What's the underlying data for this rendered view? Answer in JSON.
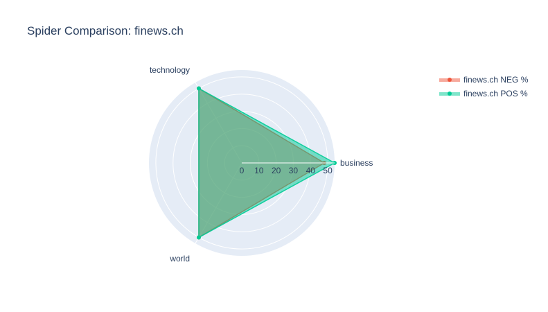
{
  "chart_data": {
    "type": "radar",
    "title": "Spider Comparison: finews.ch",
    "categories": [
      "business",
      "technology",
      "world"
    ],
    "radial_range": [
      0,
      54
    ],
    "radial_ticks": [
      "0",
      "10",
      "20",
      "30",
      "40",
      "50"
    ],
    "radial_tick_values": [
      0,
      10,
      20,
      30,
      40,
      50
    ],
    "series": [
      {
        "name": "finews.ch NEG %",
        "values": [
          48,
          50,
          50
        ],
        "color": "#ef553b"
      },
      {
        "name": "finews.ch POS %",
        "values": [
          54,
          50,
          50
        ],
        "color": "#00cc96"
      }
    ],
    "legend_position": "top-right",
    "grid": true
  },
  "colors": {
    "polar_bg": "#e5ecf6",
    "grid": "#ffffff",
    "text": "#2a3f5f"
  }
}
